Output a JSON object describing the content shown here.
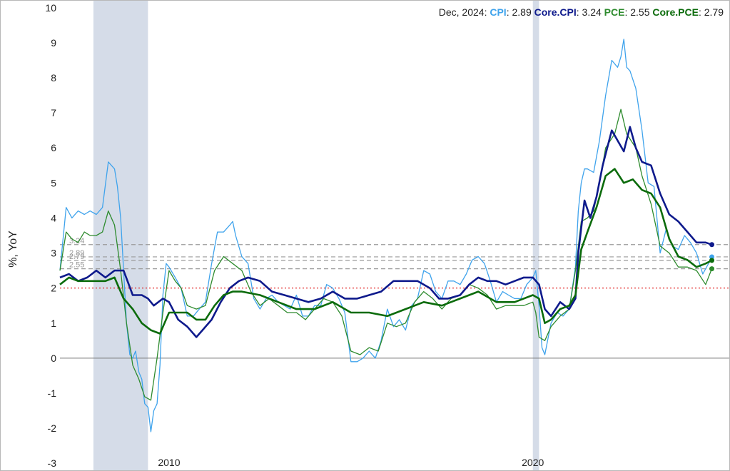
{
  "chart_data": {
    "type": "line",
    "ylabel": "%, YoY",
    "ylim": [
      -3.2,
      10.2
    ],
    "yticks": [
      "10",
      "9",
      "8",
      "7",
      "6",
      "5",
      "4",
      "3",
      "2",
      "1",
      "0",
      "-1",
      "-2",
      "-3"
    ],
    "xticks": [
      "2010",
      "2020"
    ],
    "xlim": [
      2007.0,
      2025.4
    ],
    "legend": {
      "date": "Dec, 2024",
      "entries": [
        {
          "name": "CPI",
          "value": "2.89"
        },
        {
          "name": "Core.CPI",
          "value": "3.24"
        },
        {
          "name": "PCE",
          "value": "2.55"
        },
        {
          "name": "Core.PCE",
          "value": "2.79"
        }
      ]
    },
    "recessions": [
      [
        2007.92,
        2009.42
      ],
      [
        2020.0,
        2020.17
      ]
    ],
    "target_line": 2,
    "zero_line": 0,
    "reference_lines": [
      {
        "label": "3.24",
        "value": 3.24
      },
      {
        "label": "2.89",
        "value": 2.89
      },
      {
        "label": "2.79",
        "value": 2.79
      },
      {
        "label": "2.55",
        "value": 2.55
      }
    ],
    "colors": {
      "CPI": "#3fa3ec",
      "Core.CPI": "#0e1a8c",
      "PCE": "#2e8b2e",
      "Core.PCE": "#0b6b0b",
      "recession": "#d5dce8",
      "target": "#e02020",
      "reference": "#9a9a9a",
      "zero": "#777777"
    },
    "series": [
      {
        "name": "CPI",
        "x": [
          2007.0,
          2007.17,
          2007.33,
          2007.5,
          2007.67,
          2007.83,
          2008.0,
          2008.17,
          2008.33,
          2008.5,
          2008.58,
          2008.67,
          2008.75,
          2008.83,
          2008.92,
          2009.0,
          2009.08,
          2009.17,
          2009.25,
          2009.33,
          2009.42,
          2009.5,
          2009.58,
          2009.67,
          2009.75,
          2009.83,
          2009.92,
          2010.0,
          2010.17,
          2010.33,
          2010.5,
          2010.67,
          2010.83,
          2011.0,
          2011.17,
          2011.33,
          2011.5,
          2011.67,
          2011.75,
          2011.83,
          2012.0,
          2012.17,
          2012.33,
          2012.5,
          2012.67,
          2012.83,
          2013.0,
          2013.17,
          2013.33,
          2013.5,
          2013.67,
          2013.83,
          2014.0,
          2014.17,
          2014.33,
          2014.5,
          2014.67,
          2014.83,
          2015.0,
          2015.17,
          2015.33,
          2015.5,
          2015.67,
          2015.83,
          2016.0,
          2016.17,
          2016.33,
          2016.5,
          2016.67,
          2016.83,
          2017.0,
          2017.17,
          2017.33,
          2017.5,
          2017.67,
          2017.83,
          2018.0,
          2018.17,
          2018.33,
          2018.5,
          2018.67,
          2018.83,
          2019.0,
          2019.17,
          2019.33,
          2019.5,
          2019.67,
          2019.83,
          2020.0,
          2020.08,
          2020.17,
          2020.25,
          2020.33,
          2020.5,
          2020.67,
          2020.83,
          2021.0,
          2021.17,
          2021.25,
          2021.33,
          2021.42,
          2021.5,
          2021.67,
          2021.83,
          2022.0,
          2022.17,
          2022.33,
          2022.42,
          2022.5,
          2022.58,
          2022.67,
          2022.83,
          2023.0,
          2023.17,
          2023.33,
          2023.5,
          2023.67,
          2023.83,
          2024.0,
          2024.17,
          2024.33,
          2024.5,
          2024.67,
          2024.83,
          2024.92
        ],
        "y": [
          2.5,
          4.3,
          4.0,
          4.2,
          4.1,
          4.2,
          4.1,
          4.3,
          5.6,
          5.4,
          4.9,
          4.0,
          2.5,
          1.0,
          0.1,
          0.0,
          0.2,
          -0.4,
          -0.6,
          -1.3,
          -1.4,
          -2.1,
          -1.5,
          -1.3,
          -0.2,
          1.8,
          2.7,
          2.6,
          2.3,
          2.0,
          1.2,
          1.2,
          1.4,
          1.6,
          2.7,
          3.6,
          3.6,
          3.8,
          3.9,
          3.5,
          2.9,
          2.7,
          1.7,
          1.4,
          1.7,
          1.8,
          1.6,
          1.5,
          1.4,
          1.8,
          1.2,
          1.2,
          1.5,
          1.5,
          2.1,
          2.0,
          1.7,
          1.3,
          -0.1,
          -0.1,
          0.0,
          0.2,
          0.0,
          0.5,
          1.4,
          0.9,
          1.1,
          0.8,
          1.5,
          1.7,
          2.5,
          2.4,
          1.9,
          1.7,
          2.2,
          2.2,
          2.1,
          2.4,
          2.8,
          2.9,
          2.7,
          2.2,
          1.6,
          1.9,
          1.8,
          1.7,
          1.7,
          2.1,
          2.3,
          2.5,
          1.5,
          0.3,
          0.1,
          1.0,
          1.3,
          1.2,
          1.4,
          2.6,
          4.2,
          5.0,
          5.4,
          5.4,
          5.3,
          6.2,
          7.5,
          8.5,
          8.3,
          8.6,
          9.1,
          8.3,
          8.2,
          7.7,
          6.5,
          5.0,
          4.9,
          3.0,
          3.7,
          3.2,
          3.1,
          3.5,
          3.3,
          3.0,
          2.4,
          2.7,
          2.89
        ]
      },
      {
        "name": "Core.CPI",
        "x": [
          2007.0,
          2007.25,
          2007.5,
          2007.75,
          2008.0,
          2008.25,
          2008.5,
          2008.75,
          2009.0,
          2009.25,
          2009.42,
          2009.58,
          2009.83,
          2010.0,
          2010.25,
          2010.5,
          2010.75,
          2010.92,
          2011.17,
          2011.42,
          2011.67,
          2011.92,
          2012.17,
          2012.5,
          2012.83,
          2013.17,
          2013.5,
          2013.83,
          2014.17,
          2014.5,
          2014.83,
          2015.17,
          2015.5,
          2015.83,
          2016.17,
          2016.5,
          2016.83,
          2017.17,
          2017.42,
          2017.67,
          2018.0,
          2018.25,
          2018.5,
          2018.75,
          2019.0,
          2019.25,
          2019.5,
          2019.75,
          2020.0,
          2020.17,
          2020.33,
          2020.5,
          2020.75,
          2021.0,
          2021.17,
          2021.25,
          2021.42,
          2021.58,
          2021.75,
          2021.92,
          2022.17,
          2022.5,
          2022.67,
          2022.83,
          2023.0,
          2023.25,
          2023.5,
          2023.75,
          2024.0,
          2024.25,
          2024.5,
          2024.75,
          2024.92
        ],
        "y": [
          2.3,
          2.4,
          2.2,
          2.3,
          2.5,
          2.3,
          2.5,
          2.5,
          1.8,
          1.8,
          1.7,
          1.5,
          1.7,
          1.6,
          1.1,
          0.9,
          0.6,
          0.8,
          1.1,
          1.6,
          2.0,
          2.2,
          2.3,
          2.2,
          1.9,
          1.8,
          1.7,
          1.6,
          1.7,
          1.9,
          1.7,
          1.7,
          1.8,
          1.9,
          2.2,
          2.2,
          2.2,
          2.0,
          1.7,
          1.7,
          1.8,
          2.1,
          2.3,
          2.2,
          2.2,
          2.1,
          2.2,
          2.3,
          2.3,
          2.1,
          1.4,
          1.2,
          1.6,
          1.4,
          1.7,
          3.0,
          4.5,
          4.0,
          4.6,
          5.5,
          6.5,
          5.9,
          6.6,
          6.0,
          5.6,
          5.5,
          4.7,
          4.1,
          3.9,
          3.6,
          3.3,
          3.3,
          3.24
        ]
      },
      {
        "name": "PCE",
        "x": [
          2007.0,
          2007.17,
          2007.33,
          2007.5,
          2007.67,
          2007.83,
          2008.0,
          2008.17,
          2008.33,
          2008.5,
          2008.67,
          2008.83,
          2009.0,
          2009.17,
          2009.33,
          2009.5,
          2009.67,
          2009.83,
          2010.0,
          2010.17,
          2010.33,
          2010.5,
          2010.75,
          2011.0,
          2011.25,
          2011.5,
          2011.75,
          2012.0,
          2012.25,
          2012.5,
          2012.75,
          2013.0,
          2013.25,
          2013.5,
          2013.75,
          2014.0,
          2014.25,
          2014.5,
          2014.75,
          2015.0,
          2015.25,
          2015.5,
          2015.75,
          2016.0,
          2016.25,
          2016.5,
          2016.75,
          2017.0,
          2017.25,
          2017.5,
          2017.75,
          2018.0,
          2018.25,
          2018.5,
          2018.75,
          2019.0,
          2019.25,
          2019.5,
          2019.75,
          2020.0,
          2020.08,
          2020.17,
          2020.33,
          2020.5,
          2020.75,
          2021.0,
          2021.17,
          2021.33,
          2021.5,
          2021.67,
          2021.83,
          2022.0,
          2022.25,
          2022.42,
          2022.58,
          2022.83,
          2023.0,
          2023.25,
          2023.5,
          2023.75,
          2024.0,
          2024.25,
          2024.5,
          2024.75,
          2024.92
        ],
        "y": [
          2.5,
          3.6,
          3.4,
          3.3,
          3.6,
          3.5,
          3.5,
          3.6,
          4.2,
          3.8,
          2.5,
          1.0,
          -0.2,
          -0.6,
          -1.1,
          -1.2,
          0.0,
          1.3,
          2.5,
          2.2,
          2.0,
          1.5,
          1.4,
          1.5,
          2.5,
          2.9,
          2.7,
          2.5,
          1.9,
          1.5,
          1.7,
          1.5,
          1.3,
          1.3,
          1.1,
          1.4,
          1.7,
          1.6,
          1.2,
          0.2,
          0.1,
          0.3,
          0.2,
          1.0,
          0.9,
          1.0,
          1.6,
          1.9,
          1.7,
          1.4,
          1.7,
          1.8,
          2.1,
          2.0,
          1.8,
          1.4,
          1.5,
          1.5,
          1.5,
          1.6,
          1.3,
          0.6,
          0.5,
          0.9,
          1.2,
          1.4,
          2.5,
          3.9,
          4.0,
          4.2,
          5.0,
          6.0,
          6.4,
          7.1,
          6.4,
          6.0,
          5.2,
          4.4,
          3.2,
          3.0,
          2.6,
          2.6,
          2.5,
          2.1,
          2.55
        ]
      },
      {
        "name": "Core.PCE",
        "x": [
          2007.0,
          2007.25,
          2007.5,
          2007.75,
          2008.0,
          2008.25,
          2008.5,
          2008.75,
          2009.0,
          2009.25,
          2009.5,
          2009.75,
          2010.0,
          2010.25,
          2010.5,
          2010.75,
          2011.0,
          2011.25,
          2011.5,
          2011.75,
          2012.0,
          2012.5,
          2013.0,
          2013.5,
          2014.0,
          2014.5,
          2015.0,
          2015.5,
          2016.0,
          2016.5,
          2017.0,
          2017.5,
          2018.0,
          2018.5,
          2019.0,
          2019.5,
          2020.0,
          2020.17,
          2020.33,
          2020.5,
          2020.75,
          2021.0,
          2021.17,
          2021.33,
          2021.5,
          2021.75,
          2022.0,
          2022.25,
          2022.5,
          2022.75,
          2023.0,
          2023.25,
          2023.5,
          2023.75,
          2024.0,
          2024.25,
          2024.5,
          2024.75,
          2024.92
        ],
        "y": [
          2.1,
          2.3,
          2.2,
          2.2,
          2.2,
          2.2,
          2.3,
          1.7,
          1.4,
          1.0,
          0.8,
          0.7,
          1.3,
          1.3,
          1.3,
          1.1,
          1.1,
          1.5,
          1.8,
          1.9,
          1.9,
          1.8,
          1.6,
          1.4,
          1.4,
          1.6,
          1.3,
          1.3,
          1.2,
          1.4,
          1.6,
          1.5,
          1.7,
          1.9,
          1.6,
          1.6,
          1.8,
          1.7,
          1.0,
          1.1,
          1.4,
          1.5,
          1.8,
          3.1,
          3.6,
          4.3,
          5.2,
          5.4,
          5.0,
          5.1,
          4.8,
          4.7,
          4.3,
          3.4,
          2.9,
          2.8,
          2.6,
          2.7,
          2.79
        ]
      }
    ]
  }
}
